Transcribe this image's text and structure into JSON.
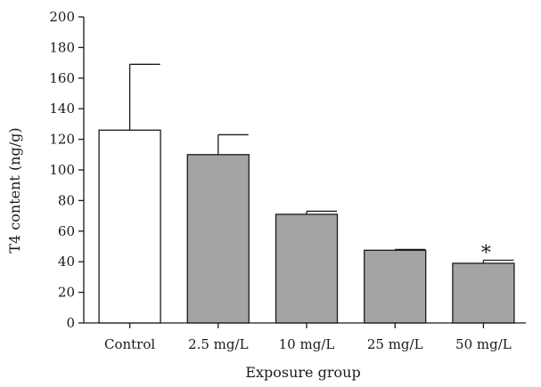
{
  "chart_data": {
    "type": "bar",
    "title": "",
    "xlabel": "Exposure group",
    "ylabel": "T4 content (ng/g)",
    "ylim": [
      0,
      200
    ],
    "yticks": [
      0,
      20,
      40,
      60,
      80,
      100,
      120,
      140,
      160,
      180,
      200
    ],
    "grid": false,
    "categories": [
      "Control",
      "2.5 mg/L",
      "10 mg/L",
      "25 mg/L",
      "50 mg/L"
    ],
    "values": [
      126,
      110,
      71,
      47.5,
      39
    ],
    "error_upper": [
      43,
      13,
      2,
      0.5,
      2
    ],
    "colors": {
      "control_fill": "#ffffff",
      "treatment_fill": "#a4a4a4",
      "stroke": "#1a1a1a"
    },
    "annotations": [
      {
        "category": "50 mg/L",
        "text": "*"
      }
    ]
  }
}
